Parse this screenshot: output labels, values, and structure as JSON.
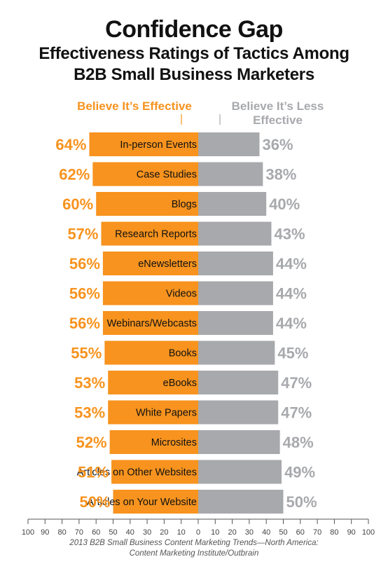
{
  "chart_data": {
    "type": "bar",
    "title": "Confidence Gap",
    "subtitle": [
      "Effectiveness Ratings of Tactics Among",
      "B2B Small Business Marketers"
    ],
    "legend": [
      "Believe It’s Effective",
      "Believe It’s Less Effective"
    ],
    "categories": [
      "In-person Events",
      "Case Studies",
      "Blogs",
      "Research Reports",
      "eNewsletters",
      "Videos",
      "Webinars/Webcasts",
      "Books",
      "eBooks",
      "White Papers",
      "Microsites",
      "Articles on Other Websites",
      "Articles on Your Website"
    ],
    "series": [
      {
        "name": "Believe It’s Effective",
        "values": [
          64,
          62,
          60,
          57,
          56,
          56,
          56,
          55,
          53,
          53,
          52,
          51,
          50
        ],
        "color": "#f7931e"
      },
      {
        "name": "Believe It’s Less Effective",
        "values": [
          36,
          38,
          40,
          43,
          44,
          44,
          44,
          45,
          47,
          47,
          48,
          49,
          50
        ],
        "color": "#a7a9ac"
      }
    ],
    "value_suffix": "%",
    "axis_ticks": [
      "100",
      "90",
      "80",
      "70",
      "60",
      "50",
      "40",
      "30",
      "20",
      "10",
      "0",
      "10",
      "20",
      "30",
      "40",
      "50",
      "60",
      "70",
      "80",
      "90",
      "100"
    ],
    "source": [
      "2013 B2B Small Business Content Marketing Trends—North America:",
      "Content Marketing Institute/Outbrain"
    ]
  }
}
